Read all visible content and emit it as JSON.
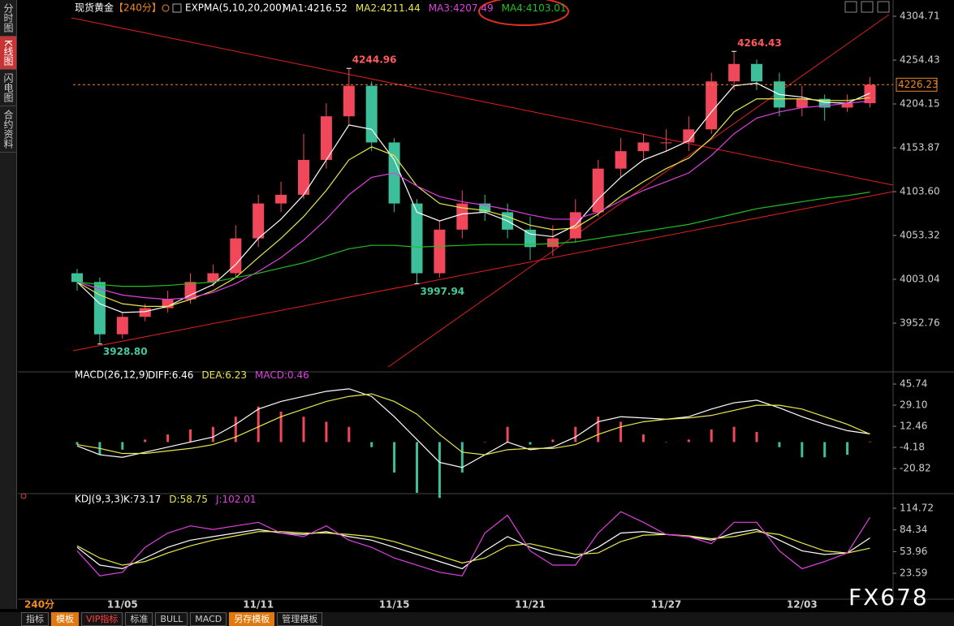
{
  "header": {
    "symbol": "现货黄金",
    "period": "【240分】",
    "indicator": "EXPMA(5,10,20,200)"
  },
  "sidebar": [
    "分时图",
    "K线图",
    "闪电图",
    "合约资料"
  ],
  "toolbar": [
    "指标",
    "模板",
    "VIP指标",
    "标准",
    "BULL",
    "MACD",
    "另存模板",
    "管理模板"
  ],
  "period_label": "240分",
  "watermark": "FX678",
  "chart_data": [
    {
      "type": "candlestick",
      "up_color": "#f0485a",
      "down_color": "#3cbf9a",
      "candles": {
        "open": [
          4010,
          4000,
          3940,
          3960,
          3970,
          3980,
          4000,
          4010,
          4050,
          4090,
          4100,
          4140,
          4190,
          4225,
          4160,
          4090,
          4010,
          4060,
          4090,
          4080,
          4060,
          4040,
          4050,
          4080,
          4130,
          4150,
          4160,
          4160,
          4175,
          4230,
          4250,
          4230,
          4200,
          4210,
          4200,
          4205
        ],
        "high": [
          4015,
          4005,
          3965,
          3975,
          3990,
          4010,
          4020,
          4065,
          4100,
          4115,
          4170,
          4205,
          4244.96,
          4230,
          4165,
          4095,
          4070,
          4105,
          4100,
          4090,
          4075,
          4065,
          4095,
          4140,
          4165,
          4170,
          4175,
          4190,
          4240,
          4264.43,
          4255,
          4240,
          4225,
          4215,
          4215,
          4235
        ],
        "low": [
          3990,
          3928.8,
          3935,
          3955,
          3965,
          3975,
          3995,
          4005,
          4040,
          4080,
          4095,
          4130,
          4180,
          4150,
          4080,
          3997.94,
          4005,
          4050,
          4070,
          4050,
          4025,
          4030,
          4045,
          4075,
          4120,
          4140,
          4150,
          4150,
          4170,
          4220,
          4220,
          4190,
          4190,
          4185,
          4195,
          4200
        ],
        "close": [
          4000,
          3940,
          3960,
          3970,
          3980,
          4000,
          4010,
          4050,
          4090,
          4100,
          4140,
          4190,
          4225,
          4160,
          4090,
          4010,
          4060,
          4090,
          4080,
          4060,
          4040,
          4050,
          4080,
          4130,
          4150,
          4160,
          4160,
          4175,
          4230,
          4250,
          4230,
          4200,
          4210,
          4200,
          4205,
          4226.23
        ]
      },
      "series": [
        {
          "name": "MA1:",
          "color": "#ffffff",
          "values": [
            4000,
            3975,
            3965,
            3966,
            3972,
            3985,
            3997,
            4020,
            4050,
            4072,
            4100,
            4140,
            4180,
            4175,
            4140,
            4080,
            4070,
            4078,
            4080,
            4070,
            4055,
            4052,
            4065,
            4095,
            4120,
            4140,
            4150,
            4162,
            4195,
            4225,
            4228,
            4215,
            4212,
            4206,
            4205,
            4216.52
          ]
        },
        {
          "name": "MA2:",
          "color": "#e8e84a",
          "values": [
            4000,
            3985,
            3975,
            3972,
            3972,
            3980,
            3990,
            4005,
            4028,
            4050,
            4075,
            4105,
            4140,
            4155,
            4145,
            4110,
            4090,
            4085,
            4082,
            4075,
            4065,
            4060,
            4062,
            4078,
            4098,
            4115,
            4130,
            4142,
            4165,
            4195,
            4210,
            4210,
            4210,
            4208,
            4208,
            4211.44
          ]
        },
        {
          "name": "MA3:",
          "color": "#e040e0",
          "values": [
            4000,
            3992,
            3985,
            3982,
            3980,
            3982,
            3988,
            3998,
            4012,
            4028,
            4048,
            4072,
            4100,
            4120,
            4125,
            4110,
            4098,
            4092,
            4088,
            4083,
            4077,
            4072,
            4072,
            4080,
            4093,
            4105,
            4115,
            4125,
            4145,
            4170,
            4188,
            4195,
            4200,
            4202,
            4205,
            4207.49
          ]
        },
        {
          "name": "MA4:",
          "color": "#22c022",
          "values": [
            4000,
            3997,
            3995,
            3995,
            3996,
            3998,
            4000,
            4005,
            4010,
            4016,
            4022,
            4030,
            4038,
            4042,
            4042,
            4040,
            4041,
            4042,
            4043,
            4043,
            4043,
            4044,
            4046,
            4050,
            4054,
            4058,
            4062,
            4066,
            4072,
            4078,
            4084,
            4088,
            4092,
            4096,
            4099,
            4103.01
          ]
        }
      ],
      "annotations": [
        4244.96,
        4264.43,
        3997.94,
        {
          "value": 3928.8,
          "label": "3928.80"
        }
      ],
      "last_price": 4226.23,
      "ylim": [
        3899.7,
        4315.9
      ],
      "yticks": [
        4304.71,
        4254.43,
        4204.15,
        4153.87,
        {
          "value": 4103.6,
          "label": "4103.60"
        },
        4053.32,
        4003.04,
        3952.76
      ]
    },
    {
      "type": "macd",
      "title": "MACD(26,12,9)",
      "positive_color": "#f0485a",
      "negative_color": "#3cbf9a",
      "series": [
        {
          "name": "DIFF:",
          "color": "#ffffff",
          "values": [
            -3,
            -10,
            -12,
            -8,
            -4,
            0,
            4,
            14,
            26,
            32,
            36,
            40,
            42,
            36,
            20,
            2,
            -16,
            -20,
            -10,
            0,
            -6,
            -4,
            4,
            16,
            20,
            19,
            18,
            20,
            26,
            31,
            33,
            27,
            20,
            14,
            9,
            6.46
          ]
        },
        {
          "name": "DEA:",
          "color": "#e8e84a",
          "values": [
            -2,
            -5,
            -9,
            -9,
            -7,
            -5,
            -2,
            4,
            12,
            20,
            26,
            32,
            36,
            38,
            32,
            22,
            6,
            -8,
            -10,
            -6,
            -5,
            -5,
            -2,
            6,
            12,
            16,
            18,
            19,
            21,
            25,
            29,
            29,
            26,
            20,
            14,
            6.23
          ]
        },
        {
          "name": "MACD:",
          "color": "#e040e0",
          "bars": true,
          "values": [
            -2,
            -10,
            -6,
            2,
            6,
            10,
            12,
            20,
            28,
            24,
            20,
            16,
            12,
            -4,
            -24,
            -40,
            -44,
            -24,
            0,
            12,
            -2,
            2,
            12,
            20,
            16,
            6,
            0,
            2,
            10,
            12,
            8,
            -4,
            -12,
            -12,
            -10,
            0.46
          ]
        }
      ],
      "ylim": [
        -38.1,
        52.78
      ],
      "yticks": [
        45.74,
        {
          "value": 29.1,
          "label": "29.10"
        },
        12.46,
        -4.18,
        -20.82
      ]
    },
    {
      "type": "kdj",
      "title": "KDJ(9,3,3)",
      "categories": [
        null,
        null,
        "11/05",
        null,
        null,
        null,
        null,
        null,
        "11/11",
        null,
        null,
        null,
        null,
        null,
        "11/15",
        null,
        null,
        null,
        null,
        null,
        "11/21",
        null,
        null,
        null,
        null,
        null,
        "11/27",
        null,
        null,
        null,
        null,
        null,
        "12/03",
        null,
        null,
        null
      ],
      "series": [
        {
          "name": "K:",
          "color": "#ffffff",
          "values": [
            60,
            35,
            30,
            45,
            60,
            70,
            75,
            80,
            85,
            80,
            78,
            82,
            75,
            70,
            60,
            50,
            40,
            30,
            55,
            75,
            60,
            50,
            45,
            60,
            80,
            82,
            78,
            75,
            70,
            80,
            85,
            70,
            55,
            50,
            52,
            73.17
          ]
        },
        {
          "name": "D:",
          "color": "#e8e84a",
          "values": [
            62,
            45,
            35,
            40,
            52,
            62,
            70,
            76,
            82,
            82,
            80,
            80,
            78,
            75,
            68,
            58,
            48,
            38,
            45,
            62,
            65,
            58,
            50,
            52,
            68,
            77,
            78,
            76,
            72,
            75,
            82,
            78,
            66,
            55,
            52,
            58.75
          ]
        },
        {
          "name": "J:",
          "color": "#e040e0",
          "values": [
            55,
            20,
            25,
            60,
            80,
            90,
            85,
            90,
            95,
            80,
            75,
            90,
            70,
            60,
            45,
            35,
            25,
            20,
            80,
            105,
            55,
            35,
            35,
            80,
            110,
            95,
            78,
            75,
            65,
            95,
            95,
            55,
            30,
            40,
            52,
            102.01
          ]
        }
      ],
      "ylim": [
        -9.4,
        128.4
      ],
      "yticks": [
        114.72,
        84.34,
        53.96,
        23.59
      ]
    }
  ]
}
